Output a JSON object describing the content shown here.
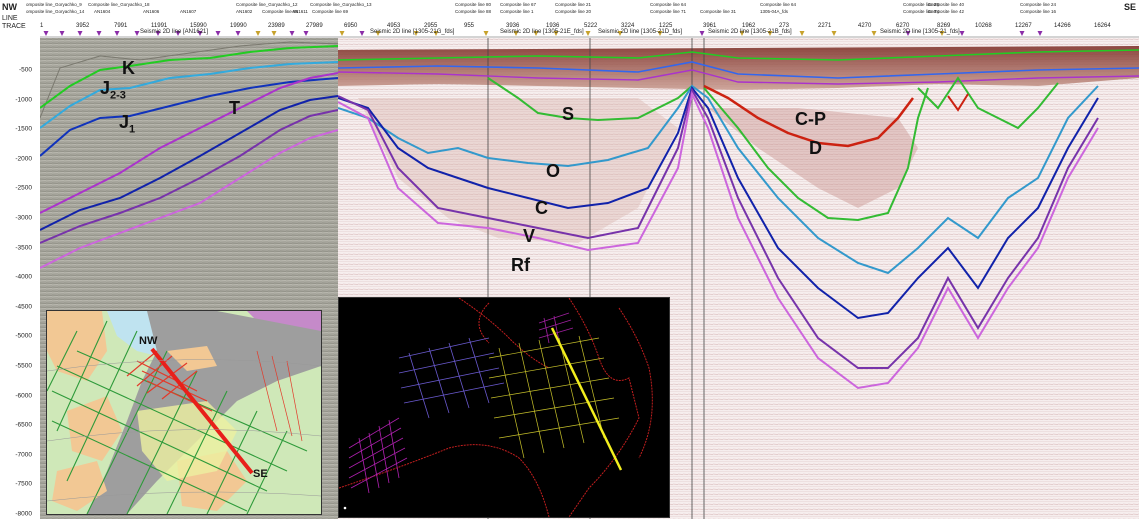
{
  "header": {
    "nw": "NW",
    "se": "SE",
    "line_label": "LINE",
    "trace_label": "TRACE",
    "composite_labels": [
      "omposite line_Goryachko_9",
      "omposite line_Goryachko_14",
      "Composite line_Goryachko_18",
      "AN1604",
      "AN1606",
      "AN1607",
      "Composite line_Goryachko_12",
      "AN1602",
      "Composite line 65",
      "AN1611",
      "Composite line_Goryachko_13",
      "Composite line 69",
      "Composite line 80",
      "Composite line 88",
      "Composite line 67",
      "Composite line 1",
      "Composite line 21",
      "Composite line 20",
      "Composite line 64",
      "Composite line 71",
      "Composite line 31",
      "Composite line 64",
      "1305-04A_fds",
      "Composite line 26",
      "Composite line 74",
      "Composite line 40",
      "Composite line 42",
      "Composite line 24",
      "Composite line 16"
    ],
    "trace_values": [
      "1",
      "3952",
      "7991",
      "11991",
      "15990",
      "19990",
      "23989",
      "27989",
      "6950",
      "4953",
      "2955",
      "955",
      "3936",
      "1936",
      "5222",
      "3224",
      "1225",
      "3961",
      "1962",
      "273",
      "2271",
      "4270",
      "6270",
      "8269",
      "10268",
      "12267",
      "14266",
      "16264"
    ]
  },
  "sections": [
    "Seismic 2D line [AN1621]",
    "Seismic 2D line [1305-21G_fds]",
    "Seismic 2D line [1305-21E_fds]",
    "Seismic 2D line [1305-21D_fds]",
    "Seismic 2D line [1305-21B_fds]",
    "Seismic 2D line [1305-21_fds]"
  ],
  "y_axis": [
    "-500",
    "-1000",
    "-1500",
    "-2000",
    "-2500",
    "-3000",
    "-3500",
    "-4000",
    "-4500",
    "-5000",
    "-5500",
    "-6000",
    "-6500",
    "-7000",
    "-7500",
    "-8000"
  ],
  "horizons": {
    "K": "K",
    "J23_main": "J",
    "J23_sub": "2-3",
    "J1_main": "J",
    "J1_sub": "1",
    "T": "T",
    "S": "S",
    "O": "O",
    "C": "C",
    "V": "V",
    "Rf": "Rf",
    "CP": "C-P",
    "D": "D"
  },
  "horizon_colors": {
    "K": "#22cc22",
    "J23": "#33aadd",
    "J1": "#1133bb",
    "T": "#9933bb",
    "S": "#33bb33",
    "O": "#3399cc",
    "C": "#1122aa",
    "V": "#7733aa",
    "Rf": "#cc66dd",
    "CP": "#cc2211"
  },
  "inset_map": {
    "nw": "NW",
    "se": "SE"
  }
}
